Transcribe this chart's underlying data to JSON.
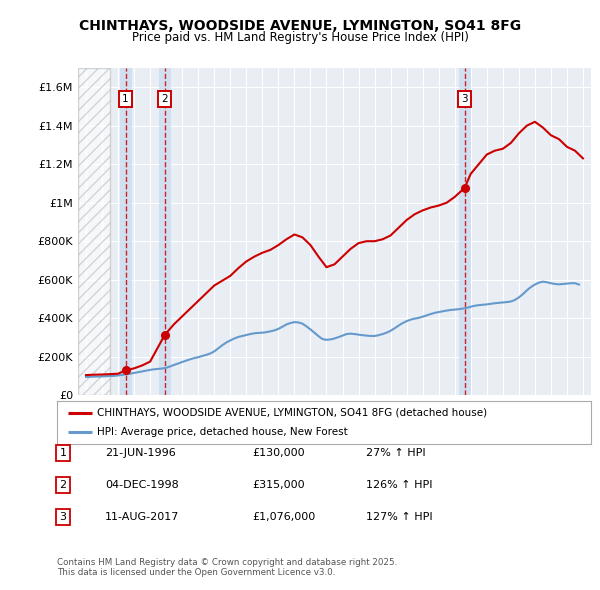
{
  "title": "CHINTHAYS, WOODSIDE AVENUE, LYMINGTON, SO41 8FG",
  "subtitle": "Price paid vs. HM Land Registry's House Price Index (HPI)",
  "ylim": [
    0,
    1700000
  ],
  "yticks": [
    0,
    200000,
    400000,
    600000,
    800000,
    1000000,
    1200000,
    1400000,
    1600000
  ],
  "ytick_labels": [
    "£0",
    "£200K",
    "£400K",
    "£600K",
    "£800K",
    "£1M",
    "£1.2M",
    "£1.4M",
    "£1.6M"
  ],
  "xlim_start": 1993.5,
  "xlim_end": 2025.5,
  "background_color": "#ffffff",
  "plot_bg_color": "#e8eef4",
  "grid_color": "#ffffff",
  "hatch_end_year": 1995.5,
  "sale1_year": 1996.47,
  "sale1_price": 130000,
  "sale1_label": "1",
  "sale2_year": 1998.92,
  "sale2_price": 315000,
  "sale2_label": "2",
  "sale3_year": 2017.61,
  "sale3_price": 1076000,
  "sale3_label": "3",
  "red_line_color": "#cc0000",
  "blue_line_color": "#6699cc",
  "marker_color": "#cc0000",
  "box_color": "#cc0000",
  "shade_color": "#ccddf0",
  "legend_red_label": "CHINTHAYS, WOODSIDE AVENUE, LYMINGTON, SO41 8FG (detached house)",
  "legend_blue_label": "HPI: Average price, detached house, New Forest",
  "table_rows": [
    [
      "1",
      "21-JUN-1996",
      "£130,000",
      "27% ↑ HPI"
    ],
    [
      "2",
      "04-DEC-1998",
      "£315,000",
      "126% ↑ HPI"
    ],
    [
      "3",
      "11-AUG-2017",
      "£1,076,000",
      "127% ↑ HPI"
    ]
  ],
  "copyright_text": "Contains HM Land Registry data © Crown copyright and database right 2025.\nThis data is licensed under the Open Government Licence v3.0.",
  "hpi_years": [
    1994.0,
    1994.25,
    1994.5,
    1994.75,
    1995.0,
    1995.25,
    1995.5,
    1995.75,
    1996.0,
    1996.25,
    1996.5,
    1996.75,
    1997.0,
    1997.25,
    1997.5,
    1997.75,
    1998.0,
    1998.25,
    1998.5,
    1998.75,
    1999.0,
    1999.25,
    1999.5,
    1999.75,
    2000.0,
    2000.25,
    2000.5,
    2000.75,
    2001.0,
    2001.25,
    2001.5,
    2001.75,
    2002.0,
    2002.25,
    2002.5,
    2002.75,
    2003.0,
    2003.25,
    2003.5,
    2003.75,
    2004.0,
    2004.25,
    2004.5,
    2004.75,
    2005.0,
    2005.25,
    2005.5,
    2005.75,
    2006.0,
    2006.25,
    2006.5,
    2006.75,
    2007.0,
    2007.25,
    2007.5,
    2007.75,
    2008.0,
    2008.25,
    2008.5,
    2008.75,
    2009.0,
    2009.25,
    2009.5,
    2009.75,
    2010.0,
    2010.25,
    2010.5,
    2010.75,
    2011.0,
    2011.25,
    2011.5,
    2011.75,
    2012.0,
    2012.25,
    2012.5,
    2012.75,
    2013.0,
    2013.25,
    2013.5,
    2013.75,
    2014.0,
    2014.25,
    2014.5,
    2014.75,
    2015.0,
    2015.25,
    2015.5,
    2015.75,
    2016.0,
    2016.25,
    2016.5,
    2016.75,
    2017.0,
    2017.25,
    2017.5,
    2017.75,
    2018.0,
    2018.25,
    2018.5,
    2018.75,
    2019.0,
    2019.25,
    2019.5,
    2019.75,
    2020.0,
    2020.25,
    2020.5,
    2020.75,
    2021.0,
    2021.25,
    2021.5,
    2021.75,
    2022.0,
    2022.25,
    2022.5,
    2022.75,
    2023.0,
    2023.25,
    2023.5,
    2023.75,
    2024.0,
    2024.25,
    2024.5,
    2024.75
  ],
  "hpi_values": [
    95000,
    96000,
    97000,
    97500,
    98000,
    99000,
    100000,
    101000,
    103000,
    106000,
    109000,
    112000,
    116000,
    120000,
    124000,
    128000,
    132000,
    135000,
    137000,
    139000,
    143000,
    150000,
    158000,
    165000,
    173000,
    180000,
    187000,
    193000,
    198000,
    204000,
    210000,
    217000,
    228000,
    244000,
    260000,
    274000,
    285000,
    295000,
    303000,
    308000,
    313000,
    318000,
    322000,
    324000,
    325000,
    328000,
    332000,
    337000,
    345000,
    356000,
    368000,
    375000,
    380000,
    378000,
    372000,
    358000,
    342000,
    325000,
    307000,
    292000,
    288000,
    290000,
    295000,
    302000,
    310000,
    318000,
    320000,
    318000,
    315000,
    312000,
    310000,
    308000,
    308000,
    312000,
    318000,
    325000,
    335000,
    348000,
    362000,
    375000,
    385000,
    393000,
    398000,
    402000,
    408000,
    415000,
    422000,
    428000,
    432000,
    436000,
    440000,
    443000,
    445000,
    447000,
    450000,
    454000,
    460000,
    465000,
    468000,
    470000,
    472000,
    475000,
    478000,
    480000,
    482000,
    484000,
    487000,
    495000,
    508000,
    525000,
    545000,
    562000,
    575000,
    585000,
    590000,
    587000,
    582000,
    578000,
    576000,
    578000,
    580000,
    582000,
    582000,
    575000
  ],
  "red_years": [
    1994.0,
    1994.5,
    1995.0,
    1995.5,
    1996.0,
    1996.47,
    1996.75,
    1997.0,
    1997.5,
    1998.0,
    1998.92,
    1999.5,
    2000.0,
    2000.5,
    2001.0,
    2002.0,
    2003.0,
    2003.5,
    2004.0,
    2004.5,
    2005.0,
    2005.5,
    2006.0,
    2006.5,
    2007.0,
    2007.5,
    2008.0,
    2008.5,
    2009.0,
    2009.5,
    2010.0,
    2010.5,
    2011.0,
    2011.5,
    2012.0,
    2012.5,
    2013.0,
    2013.5,
    2014.0,
    2014.5,
    2015.0,
    2015.5,
    2016.0,
    2016.5,
    2017.0,
    2017.61,
    2018.0,
    2018.5,
    2019.0,
    2019.5,
    2020.0,
    2020.5,
    2021.0,
    2021.5,
    2022.0,
    2022.5,
    2023.0,
    2023.5,
    2024.0,
    2024.5,
    2025.0
  ],
  "red_values": [
    105000,
    107000,
    108000,
    110000,
    112000,
    130000,
    135000,
    140000,
    155000,
    175000,
    315000,
    370000,
    410000,
    450000,
    490000,
    570000,
    620000,
    660000,
    695000,
    720000,
    740000,
    755000,
    780000,
    810000,
    835000,
    820000,
    780000,
    720000,
    665000,
    680000,
    720000,
    760000,
    790000,
    800000,
    800000,
    810000,
    830000,
    870000,
    910000,
    940000,
    960000,
    975000,
    985000,
    1000000,
    1030000,
    1076000,
    1150000,
    1200000,
    1250000,
    1270000,
    1280000,
    1310000,
    1360000,
    1400000,
    1420000,
    1390000,
    1350000,
    1330000,
    1290000,
    1270000,
    1230000
  ]
}
